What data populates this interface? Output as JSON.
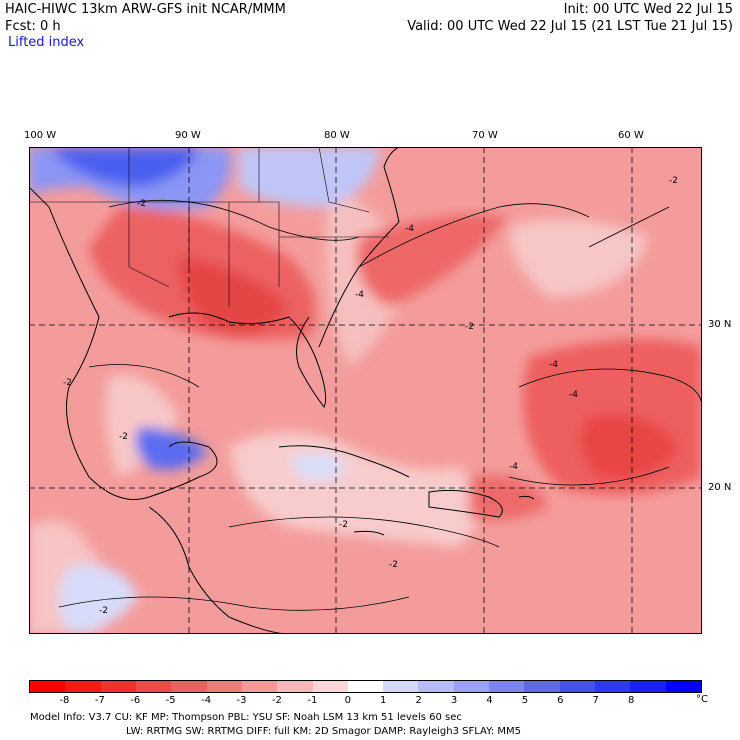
{
  "header": {
    "title_left": "HAIC-HIWC 13km ARW-GFS init    NCAR/MMM",
    "fcst": "Fcst:    0 h",
    "field": "Lifted index",
    "init": "Init: 00 UTC Wed 22 Jul 15",
    "valid": "Valid: 00 UTC Wed 22 Jul 15 (21 LST Tue 21 Jul 15)"
  },
  "map": {
    "lon_labels": [
      "100 W",
      "90 W",
      "80 W",
      "70 W",
      "60 W"
    ],
    "lat_labels": [
      "30 N",
      "20 N"
    ],
    "contour_labels": [
      "-2",
      "-4"
    ],
    "colors": {
      "deep_red": "#e84040",
      "red": "#f06868",
      "light_red": "#f4a0a0",
      "pale_red": "#f8c8c8",
      "blue": "#4a5ef0",
      "light_blue": "#b0b8f8"
    }
  },
  "colorbar": {
    "labels": [
      "-8",
      "-7",
      "-6",
      "-5",
      "-4",
      "-3",
      "-2",
      "-1",
      "0",
      "1",
      "2",
      "3",
      "4",
      "5",
      "6",
      "7",
      "8"
    ],
    "unit": "°C",
    "colors": [
      "#ff0000",
      "#f81818",
      "#f23030",
      "#ee4848",
      "#ec6060",
      "#ee7c7c",
      "#f29a9a",
      "#f6b8b8",
      "#fad6d6",
      "#ffffff",
      "#d6d8fa",
      "#b8bcf6",
      "#9aa0f2",
      "#7c84ee",
      "#6068ea",
      "#4850ec",
      "#3038f2",
      "#1820f8",
      "#0000ff"
    ]
  },
  "footer": {
    "line1": "Model Info: V3.7      CU: KF        MP: Thompson      PBL: YSU       SF: Noah LSM      13 km    51 levels    60 sec",
    "line2": "LW: RRTMG     SW: RRTMG    DIFF: full     KM: 2D Smagor DAMP: Rayleigh3   SFLAY: MM5"
  }
}
